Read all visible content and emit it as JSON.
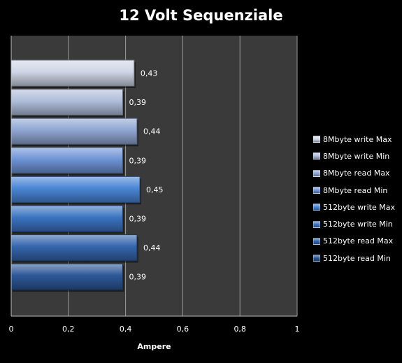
{
  "chart_data": {
    "type": "bar",
    "orientation": "horizontal",
    "title": "12 Volt Sequenziale",
    "xlabel": "Ampere",
    "ylabel": "",
    "xlim": [
      0,
      1
    ],
    "x_ticks": [
      "0",
      "0,2",
      "0,4",
      "0,6",
      "0,8",
      "1"
    ],
    "grid": "vertical",
    "legend_position": "right",
    "plot_background": "#3a3a3a",
    "series": [
      {
        "name": "8Mbyte write  Max",
        "value": 0.43,
        "label": "0,43",
        "color": "#cfd6e6"
      },
      {
        "name": "8Mbyte write  Min",
        "value": 0.39,
        "label": "0,39",
        "color": "#b0bedb"
      },
      {
        "name": "8Mbyte read Max",
        "value": 0.44,
        "label": "0,44",
        "color": "#90a6d2"
      },
      {
        "name": "8Mbyte read Min",
        "value": 0.39,
        "label": "0,39",
        "color": "#6f94d6"
      },
      {
        "name": "512byte write Max",
        "value": 0.45,
        "label": "0,45",
        "color": "#4a86d6"
      },
      {
        "name": "512byte write Min",
        "value": 0.39,
        "label": "0,39",
        "color": "#3c74c2"
      },
      {
        "name": "512byte read Max",
        "value": 0.44,
        "label": "0,44",
        "color": "#3566ad"
      },
      {
        "name": "512byte read Min",
        "value": 0.39,
        "label": "0,39",
        "color": "#2d5897"
      }
    ]
  }
}
